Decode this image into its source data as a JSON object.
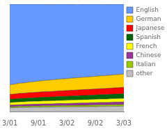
{
  "chart_data": {
    "type": "area",
    "stacked": true,
    "x": [
      0,
      1,
      2,
      3,
      4,
      5,
      6,
      7,
      8,
      9,
      10,
      11,
      12,
      13,
      14,
      15,
      16,
      17,
      18,
      19,
      20,
      21,
      22,
      23,
      24
    ],
    "series": [
      {
        "name": "other",
        "color": "#c0c0c0",
        "values": [
          3.5,
          3.6,
          3.7,
          3.8,
          3.9,
          4.0,
          4.0,
          4.1,
          4.1,
          4.2,
          4.2,
          4.3,
          4.3,
          4.4,
          4.4,
          4.5,
          4.5,
          4.6,
          4.6,
          4.7,
          4.7,
          4.8,
          4.8,
          4.9,
          5.0
        ]
      },
      {
        "name": "Italian",
        "color": "#99cc00",
        "values": [
          1.0,
          1.0,
          1.1,
          1.1,
          1.1,
          1.1,
          1.2,
          1.2,
          1.2,
          1.2,
          1.3,
          1.3,
          1.3,
          1.3,
          1.4,
          1.4,
          1.4,
          1.4,
          1.5,
          1.5,
          1.5,
          1.5,
          1.6,
          1.6,
          1.6
        ]
      },
      {
        "name": "Chinese",
        "color": "#993399",
        "values": [
          1.5,
          1.5,
          1.6,
          1.6,
          1.7,
          1.7,
          1.7,
          1.8,
          1.8,
          1.8,
          1.9,
          1.9,
          1.9,
          2.0,
          2.0,
          2.0,
          2.1,
          2.1,
          2.1,
          2.2,
          2.2,
          2.2,
          2.3,
          2.3,
          2.3
        ]
      },
      {
        "name": "French",
        "color": "#ffff00",
        "values": [
          2.5,
          2.5,
          2.6,
          2.6,
          2.7,
          2.7,
          2.7,
          2.8,
          2.8,
          2.8,
          2.9,
          2.9,
          3.0,
          3.0,
          3.0,
          3.1,
          3.1,
          3.1,
          3.2,
          3.2,
          3.2,
          3.3,
          3.3,
          3.3,
          3.4
        ]
      },
      {
        "name": "Spanish",
        "color": "#006600",
        "values": [
          3.0,
          3.1,
          3.2,
          3.2,
          3.3,
          3.3,
          3.4,
          3.5,
          3.5,
          3.6,
          3.6,
          3.7,
          3.7,
          3.8,
          3.8,
          3.9,
          3.9,
          4.0,
          4.0,
          4.1,
          4.1,
          4.2,
          4.2,
          4.3,
          4.3
        ]
      },
      {
        "name": "Japanese",
        "color": "#ff0000",
        "values": [
          4.5,
          4.6,
          4.7,
          4.7,
          4.8,
          4.9,
          5.0,
          5.0,
          5.1,
          5.1,
          5.2,
          5.2,
          5.3,
          5.3,
          5.4,
          5.4,
          5.5,
          5.5,
          5.6,
          5.6,
          5.7,
          5.7,
          5.8,
          5.8,
          5.9
        ]
      },
      {
        "name": "German",
        "color": "#ffcc00",
        "values": [
          9.0,
          9.2,
          9.5,
          9.7,
          9.9,
          10.1,
          10.3,
          10.5,
          10.7,
          10.9,
          11.0,
          11.1,
          11.2,
          11.3,
          11.4,
          11.5,
          11.6,
          11.7,
          11.8,
          11.9,
          12.0,
          12.1,
          12.2,
          12.3,
          12.4
        ]
      },
      {
        "name": "English",
        "color": "#6699ff",
        "values": [
          75.0,
          74.5,
          73.6,
          73.3,
          72.6,
          72.2,
          71.7,
          71.1,
          70.6,
          70.2,
          69.9,
          69.6,
          69.3,
          68.9,
          68.5,
          68.2,
          67.9,
          67.6,
          67.2,
          66.8,
          66.5,
          66.2,
          65.8,
          65.5,
          65.1
        ]
      }
    ],
    "xlim": [
      0,
      24
    ],
    "xticks": [
      {
        "value": 0,
        "label": "3/01"
      },
      {
        "value": 6,
        "label": "9/01"
      },
      {
        "value": 12,
        "label": "3/02"
      },
      {
        "value": 18,
        "label": "9/02"
      },
      {
        "value": 24,
        "label": "3/03"
      }
    ],
    "ylim": [
      0,
      100
    ],
    "tick_labels": "x",
    "grid": false,
    "legend": "right"
  }
}
